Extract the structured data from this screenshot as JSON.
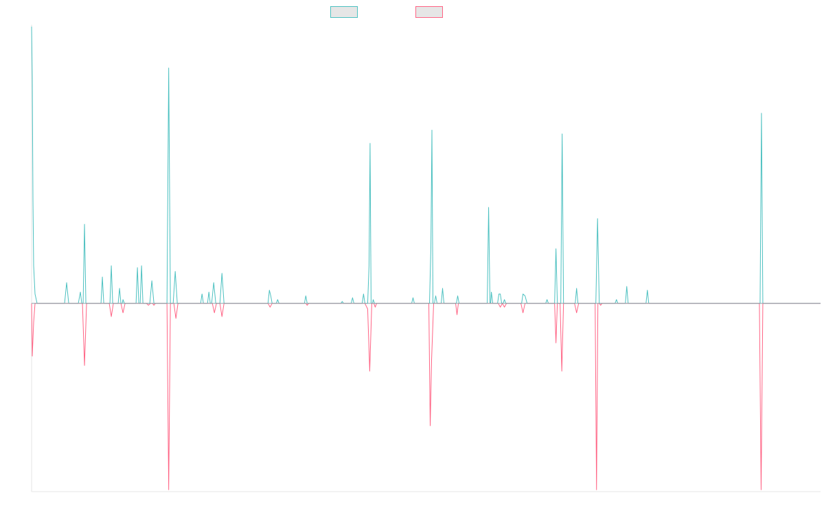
{
  "chart_data": {
    "type": "line",
    "title": "",
    "xlabel": "",
    "ylabel": "",
    "xlim": [
      0,
      1148
    ],
    "ylim": [
      -1.0,
      1.48
    ],
    "grid": false,
    "legend": {
      "placement": "top-center"
    },
    "series": [
      {
        "color": "#4bc0c0",
        "fill": "#e6e6e6",
        "points": [
          [
            0,
            1.47
          ],
          [
            1,
            1.2
          ],
          [
            2,
            0.55
          ],
          [
            3,
            0.2
          ],
          [
            5,
            0.05
          ],
          [
            8,
            0.0
          ],
          [
            48,
            0.0
          ],
          [
            51,
            0.11
          ],
          [
            54,
            0.0
          ],
          [
            68,
            0.0
          ],
          [
            71,
            0.06
          ],
          [
            73,
            0.0
          ],
          [
            75,
            0.0
          ],
          [
            77,
            0.42
          ],
          [
            79,
            0.0
          ],
          [
            101,
            0.0
          ],
          [
            103,
            0.14
          ],
          [
            105,
            0.0
          ],
          [
            114,
            0.0
          ],
          [
            116,
            0.2
          ],
          [
            118,
            0.0
          ],
          [
            126,
            0.0
          ],
          [
            128,
            0.08
          ],
          [
            130,
            0.0
          ],
          [
            132,
            0.0
          ],
          [
            133,
            0.02
          ],
          [
            135,
            0.0
          ],
          [
            152,
            0.0
          ],
          [
            154,
            0.19
          ],
          [
            156,
            0.0
          ],
          [
            158,
            0.0
          ],
          [
            160,
            0.2
          ],
          [
            162,
            0.0
          ],
          [
            172,
            0.0
          ],
          [
            175,
            0.12
          ],
          [
            178,
            0.0
          ],
          [
            197,
            0.0
          ],
          [
            199.5,
            1.25
          ],
          [
            202,
            0.0
          ],
          [
            206,
            0.0
          ],
          [
            209,
            0.17
          ],
          [
            212,
            0.0
          ],
          [
            246,
            0.0
          ],
          [
            248,
            0.05
          ],
          [
            250,
            0.0
          ],
          [
            256,
            0.0
          ],
          [
            258,
            0.06
          ],
          [
            260,
            0.0
          ],
          [
            262,
            0.0
          ],
          [
            265,
            0.11
          ],
          [
            268,
            0.0
          ],
          [
            274,
            0.0
          ],
          [
            277,
            0.16
          ],
          [
            280,
            0.0
          ],
          [
            344,
            0.0
          ],
          [
            346,
            0.07
          ],
          [
            348,
            0.04
          ],
          [
            350,
            0.0
          ],
          [
            356,
            0.0
          ],
          [
            358,
            0.02
          ],
          [
            360,
            0.0
          ],
          [
            397,
            0.0
          ],
          [
            399,
            0.04
          ],
          [
            401,
            0.0
          ],
          [
            450,
            0.0
          ],
          [
            452,
            0.01
          ],
          [
            454,
            0.0
          ],
          [
            465,
            0.0
          ],
          [
            467,
            0.03
          ],
          [
            469,
            0.0
          ],
          [
            481,
            0.0
          ],
          [
            483,
            0.05
          ],
          [
            485,
            0.0
          ],
          [
            489,
            0.0
          ],
          [
            491,
            0.2
          ],
          [
            492.5,
            0.85
          ],
          [
            494,
            0.0
          ],
          [
            496,
            0.0
          ],
          [
            497,
            0.02
          ],
          [
            499,
            0.0
          ],
          [
            553,
            0.0
          ],
          [
            555,
            0.03
          ],
          [
            557,
            0.0
          ],
          [
            579,
            0.0
          ],
          [
            581,
            0.3
          ],
          [
            582.5,
            0.92
          ],
          [
            584,
            0.0
          ],
          [
            586,
            0.0
          ],
          [
            588,
            0.04
          ],
          [
            590,
            0.0
          ],
          [
            596,
            0.0
          ],
          [
            598,
            0.08
          ],
          [
            600,
            0.0
          ],
          [
            618,
            0.0
          ],
          [
            620,
            0.04
          ],
          [
            622,
            0.0
          ],
          [
            663,
            0.0
          ],
          [
            665,
            0.51
          ],
          [
            667,
            0.0
          ],
          [
            668,
            0.0
          ],
          [
            669,
            0.06
          ],
          [
            671,
            0.0
          ],
          [
            678,
            0.0
          ],
          [
            680,
            0.05
          ],
          [
            682,
            0.05
          ],
          [
            684,
            0.0
          ],
          [
            686,
            0.0
          ],
          [
            688,
            0.02
          ],
          [
            690,
            0.0
          ],
          [
            713,
            0.0
          ],
          [
            715,
            0.05
          ],
          [
            718,
            0.04
          ],
          [
            721,
            0.0
          ],
          [
            748,
            0.0
          ],
          [
            750,
            0.02
          ],
          [
            752,
            0.0
          ],
          [
            761,
            0.0
          ],
          [
            763,
            0.29
          ],
          [
            765,
            0.0
          ],
          [
            770,
            0.0
          ],
          [
            772,
            0.9
          ],
          [
            774,
            0.0
          ],
          [
            791,
            0.0
          ],
          [
            793,
            0.08
          ],
          [
            795,
            0.0
          ],
          [
            821,
            0.0
          ],
          [
            823.5,
            0.45
          ],
          [
            826,
            0.0
          ],
          [
            849,
            0.0
          ],
          [
            851,
            0.02
          ],
          [
            853,
            0.0
          ],
          [
            864,
            0.0
          ],
          [
            866,
            0.09
          ],
          [
            868,
            0.0
          ],
          [
            894,
            0.0
          ],
          [
            896,
            0.07
          ],
          [
            898,
            0.0
          ],
          [
            1060,
            0.0
          ],
          [
            1062,
            1.01
          ],
          [
            1064,
            0.0
          ],
          [
            1148,
            0.0
          ]
        ]
      },
      {
        "color": "#ff6384",
        "fill": "#e6e6e6",
        "points": [
          [
            0,
            0.0
          ],
          [
            1,
            -0.28
          ],
          [
            3,
            -0.1
          ],
          [
            5,
            0.0
          ],
          [
            74,
            0.0
          ],
          [
            77,
            -0.33
          ],
          [
            80,
            0.0
          ],
          [
            113,
            0.0
          ],
          [
            116,
            -0.07
          ],
          [
            119,
            0.0
          ],
          [
            130,
            0.0
          ],
          [
            133,
            -0.05
          ],
          [
            136,
            0.0
          ],
          [
            167,
            0.0
          ],
          [
            170,
            -0.01
          ],
          [
            173,
            0.0
          ],
          [
            176,
            0.0
          ],
          [
            178,
            -0.01
          ],
          [
            180,
            0.0
          ],
          [
            197,
            0.0
          ],
          [
            199.5,
            -0.99
          ],
          [
            202,
            0.0
          ],
          [
            207,
            0.0
          ],
          [
            210,
            -0.08
          ],
          [
            213,
            0.0
          ],
          [
            263,
            0.0
          ],
          [
            266,
            -0.05
          ],
          [
            269,
            0.0
          ],
          [
            274,
            0.0
          ],
          [
            277,
            -0.07
          ],
          [
            280,
            0.0
          ],
          [
            344,
            0.0
          ],
          [
            347,
            -0.02
          ],
          [
            350,
            0.0
          ],
          [
            399,
            0.0
          ],
          [
            401,
            -0.01
          ],
          [
            403,
            0.0
          ],
          [
            485,
            0.0
          ],
          [
            489,
            -0.03
          ],
          [
            492,
            -0.36
          ],
          [
            495,
            0.0
          ],
          [
            498,
            0.0
          ],
          [
            500,
            -0.02
          ],
          [
            502,
            0.0
          ],
          [
            578,
            0.0
          ],
          [
            580,
            -0.65
          ],
          [
            582,
            -0.3
          ],
          [
            585,
            0.0
          ],
          [
            617,
            0.0
          ],
          [
            619,
            -0.06
          ],
          [
            621,
            0.0
          ],
          [
            679,
            0.0
          ],
          [
            682,
            -0.02
          ],
          [
            685,
            0.0
          ],
          [
            685,
            0.0
          ],
          [
            688,
            -0.02
          ],
          [
            691,
            0.0
          ],
          [
            712,
            0.0
          ],
          [
            715,
            -0.05
          ],
          [
            718,
            0.0
          ],
          [
            761,
            0.0
          ],
          [
            763,
            -0.21
          ],
          [
            765,
            0.0
          ],
          [
            769,
            0.0
          ],
          [
            771.5,
            -0.36
          ],
          [
            774,
            0.0
          ],
          [
            790,
            0.0
          ],
          [
            793,
            -0.05
          ],
          [
            796,
            0.0
          ],
          [
            820,
            0.0
          ],
          [
            822,
            -0.99
          ],
          [
            824,
            0.0
          ],
          [
            826,
            0.0
          ],
          [
            828,
            -0.01
          ],
          [
            830,
            0.0
          ],
          [
            1059,
            0.0
          ],
          [
            1061.5,
            -0.99
          ],
          [
            1064,
            0.0
          ],
          [
            1148,
            0.0
          ]
        ]
      }
    ]
  }
}
